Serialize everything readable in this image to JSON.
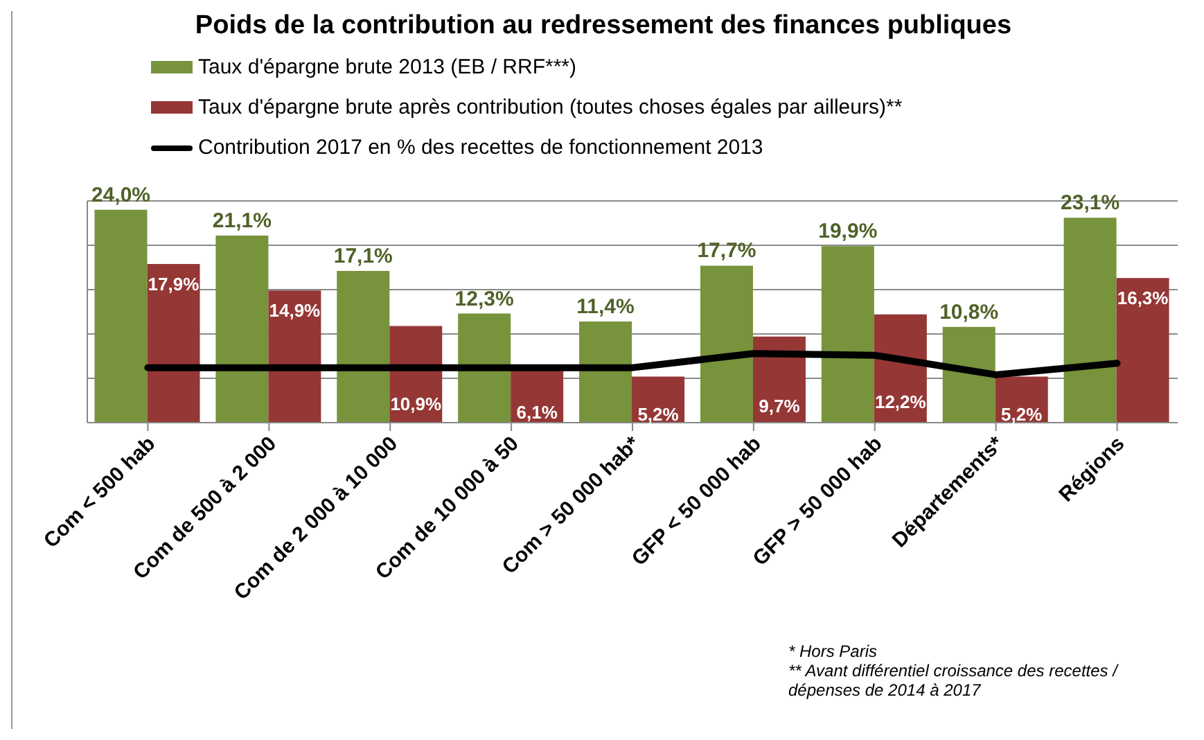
{
  "chart_data": {
    "type": "bar",
    "title": "Poids de la contribution au redressement des finances publiques",
    "categories": [
      "Com < 500 hab",
      "Com de 500 à 2 000",
      "Com de 2 000 à 10 000",
      "Com de 10 000 à 50",
      "Com > 50 000 hab*",
      "GFP < 50 000 hab",
      "GFP > 50 000 hab",
      "Départements*",
      "Régions"
    ],
    "series": [
      {
        "name": "Taux d'épargne brute 2013 (EB / RRF***)",
        "color": "#77933c",
        "values": [
          24.0,
          21.1,
          17.1,
          12.3,
          11.4,
          17.7,
          19.9,
          10.8,
          23.1
        ],
        "value_labels": [
          "24,0%",
          "21,1%",
          "17,1%",
          "12,3%",
          "11,4%",
          "17,7%",
          "19,9%",
          "10,8%",
          "23,1%"
        ]
      },
      {
        "name": "Taux d'épargne brute après contribution (toutes choses égales par ailleurs)**",
        "color": "#953735",
        "values": [
          17.9,
          14.9,
          10.9,
          6.1,
          5.2,
          9.7,
          12.2,
          5.2,
          16.3
        ],
        "value_labels": [
          "17,9%",
          "14,9%",
          "10,9%",
          "6,1%",
          "5,2%",
          "9,7%",
          "12,2%",
          "5,2%",
          "16,3%"
        ]
      },
      {
        "name": "Contribution 2017 en % des recettes de fonctionnement 2013",
        "type": "line",
        "color": "#000000",
        "values": [
          6.2,
          6.2,
          6.2,
          6.2,
          6.2,
          7.8,
          7.6,
          5.4,
          6.7
        ]
      }
    ],
    "ylim": [
      0,
      25
    ],
    "yticks": [
      {
        "value": 0,
        "label": null
      },
      {
        "value": 5,
        "label": null
      },
      {
        "value": 10,
        "label": null
      },
      {
        "value": 15,
        "label": null
      },
      {
        "value": 20,
        "label": null
      },
      {
        "value": 25,
        "label": null
      }
    ],
    "tick_labels": "x",
    "grid": "y",
    "legend": "top",
    "annotations": [
      "* Hors Paris",
      "** Avant différentiel croissance des recettes / dépenses de 2014 à 2017"
    ]
  }
}
